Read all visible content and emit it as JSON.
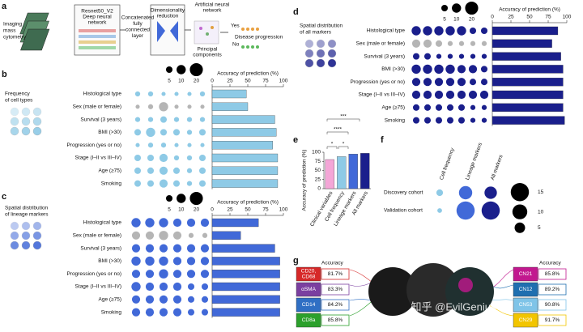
{
  "a": {
    "label": "a",
    "input": [
      "Imaging",
      "mass",
      "cytometry"
    ],
    "network": [
      "Resnet50_V2",
      "Deep neural",
      "network"
    ],
    "layer": [
      "Concatenated",
      "fully",
      "connected",
      "layer"
    ],
    "reduction": [
      "Dimensionality",
      "reduction"
    ],
    "ann": [
      "Artificial neural",
      "network"
    ],
    "pcs": [
      "Principal",
      "components"
    ],
    "yes": "Yes",
    "no": "No",
    "outcome": "Disease progression"
  },
  "b": {
    "label": "b",
    "title": [
      "Frequency",
      "of cell types"
    ],
    "rows": [
      "Histological type",
      "Sex (male or female)",
      "Survival (3 years)",
      "BMI (>30)",
      "Progression (yes or no)",
      "Stage (I–II vs III–IV)",
      "Age (≥75)",
      "Smoking"
    ],
    "bubbles": [
      [
        3,
        3,
        2,
        2,
        2,
        3
      ],
      [
        2,
        3,
        10,
        2,
        2,
        2
      ],
      [
        3,
        3,
        5,
        3,
        3,
        3
      ],
      [
        5,
        10,
        5,
        5,
        3,
        5
      ],
      [
        2,
        3,
        3,
        2,
        2,
        2
      ],
      [
        5,
        5,
        8,
        3,
        3,
        5
      ],
      [
        5,
        5,
        8,
        5,
        3,
        5
      ],
      [
        5,
        5,
        8,
        5,
        3,
        5
      ]
    ],
    "bubble_colors": [
      "#8ecae6",
      "#b5b5b5",
      "#8ecae6",
      "#8ecae6",
      "#8ecae6",
      "#8ecae6",
      "#8ecae6",
      "#8ecae6"
    ],
    "size_legend": [
      5,
      10,
      20
    ],
    "xlabel": "Accuracy of prediction (%)",
    "xlim": [
      0,
      100
    ],
    "xticks": [
      0,
      25,
      50,
      75,
      100
    ],
    "values": [
      48,
      50,
      88,
      90,
      85,
      92,
      92,
      92
    ],
    "color": "#8ecae6"
  },
  "c": {
    "label": "c",
    "title": [
      "Spatial distribution",
      "of lineage markers"
    ],
    "rows": [
      "Histological type",
      "Sex (male or female)",
      "Survival (3 years)",
      "BMI (>30)",
      "Progression (yes or no)",
      "Stage (I–II vs III–IV)",
      "Age (≥75)",
      "Smoking"
    ],
    "bubbles": [
      [
        10,
        10,
        10,
        8,
        8,
        8
      ],
      [
        8,
        8,
        10,
        8,
        3,
        3
      ],
      [
        8,
        8,
        8,
        8,
        8,
        8
      ],
      [
        10,
        10,
        10,
        8,
        8,
        8
      ],
      [
        8,
        8,
        10,
        8,
        8,
        8
      ],
      [
        10,
        8,
        8,
        8,
        5,
        5
      ],
      [
        8,
        8,
        8,
        8,
        5,
        5
      ],
      [
        8,
        8,
        8,
        8,
        5,
        5
      ]
    ],
    "bubble_colors": [
      "#4169d8",
      "#b5b5b5",
      "#4169d8",
      "#4169d8",
      "#4169d8",
      "#4169d8",
      "#4169d8",
      "#4169d8"
    ],
    "size_legend": [
      5,
      10,
      20
    ],
    "xlabel": "Accuracy of prediction (%)",
    "xlim": [
      0,
      100
    ],
    "xticks": [
      0,
      25,
      50,
      75,
      100
    ],
    "values": [
      65,
      40,
      88,
      95,
      95,
      95,
      95,
      95
    ],
    "color": "#4169d8"
  },
  "d": {
    "label": "d",
    "title": [
      "Spatial distribution",
      "of all markers"
    ],
    "rows": [
      "Histological type",
      "Sex (male or female)",
      "Survival (3 years)",
      "BMI (>30)",
      "Progression (yes or no)",
      "Stage (I–II vs III–IV)",
      "Age (≥75)",
      "Smoking"
    ],
    "bubbles": [
      [
        10,
        10,
        10,
        10,
        10,
        5,
        5
      ],
      [
        8,
        8,
        5,
        3,
        3,
        3,
        3
      ],
      [
        5,
        5,
        3,
        3,
        3,
        3,
        3
      ],
      [
        10,
        10,
        10,
        10,
        8,
        8,
        5
      ],
      [
        8,
        8,
        8,
        8,
        8,
        5,
        5
      ],
      [
        8,
        8,
        8,
        8,
        8,
        8,
        8
      ],
      [
        5,
        5,
        5,
        5,
        5,
        3,
        3
      ],
      [
        5,
        5,
        5,
        5,
        5,
        3,
        3
      ]
    ],
    "bubble_colors": [
      "#1a1f8c",
      "#b5b5b5",
      "#1a1f8c",
      "#1a1f8c",
      "#1a1f8c",
      "#1a1f8c",
      "#1a1f8c",
      "#1a1f8c"
    ],
    "size_legend": [
      5,
      10,
      20
    ],
    "xlabel": "Accuracy of prediction (%)",
    "xlim": [
      0,
      100
    ],
    "xticks": [
      0,
      25,
      50,
      75,
      100
    ],
    "values": [
      88,
      80,
      92,
      95,
      95,
      95,
      95,
      97
    ],
    "color": "#1a1f8c"
  },
  "e": {
    "label": "e",
    "type": "bar",
    "ylabel": "Accuracy of prediction (%)",
    "categories": [
      "Clinical variables",
      "Cell frequency",
      "Lineage markers",
      "All markers"
    ],
    "values": [
      80,
      88,
      95,
      97
    ],
    "colors": [
      "#f4a6d7",
      "#8ecae6",
      "#4169d8",
      "#1a1f8c"
    ],
    "ylim": [
      0,
      100
    ],
    "yticks": [
      0,
      25,
      50,
      75,
      100
    ],
    "significance": [
      "*",
      "*",
      "****",
      "***"
    ]
  },
  "f": {
    "label": "f",
    "columns": [
      "Cell frequency",
      "Lineage markers",
      "All markers"
    ],
    "rows": [
      "Discovery cohort",
      "Validation cohort"
    ],
    "sizes": [
      [
        2,
        8,
        7
      ],
      [
        1,
        15,
        15
      ]
    ],
    "colors": [
      "#8ecae6",
      "#4169d8",
      "#1a1f8c"
    ],
    "size_legend": [
      15,
      10,
      5
    ]
  },
  "g": {
    "label": "g",
    "header_left": "Accuracy",
    "header_right": "Accuracy",
    "left": [
      {
        "marker": [
          "CD20,",
          "CD68"
        ],
        "accuracy": "81.7%",
        "color": "#d62828"
      },
      {
        "marker": [
          "αSMA"
        ],
        "accuracy": "83.3%",
        "color": "#7b3fa0"
      },
      {
        "marker": [
          "CD14"
        ],
        "accuracy": "84.2%",
        "color": "#2f6fc4"
      },
      {
        "marker": [
          "CD8a"
        ],
        "accuracy": "85.8%",
        "color": "#2ca02c"
      }
    ],
    "right": [
      {
        "marker": [
          "CN21"
        ],
        "accuracy": "85.8%",
        "color": "#c2188f"
      },
      {
        "marker": [
          "CN12"
        ],
        "accuracy": "89.2%",
        "color": "#1f6fb0"
      },
      {
        "marker": [
          "CN53"
        ],
        "accuracy": "90.8%",
        "color": "#7fc4e8"
      },
      {
        "marker": [
          "CN29"
        ],
        "accuracy": "91.7%",
        "color": "#f2c500"
      }
    ],
    "watermark": "知乎 @EvilGenius"
  }
}
